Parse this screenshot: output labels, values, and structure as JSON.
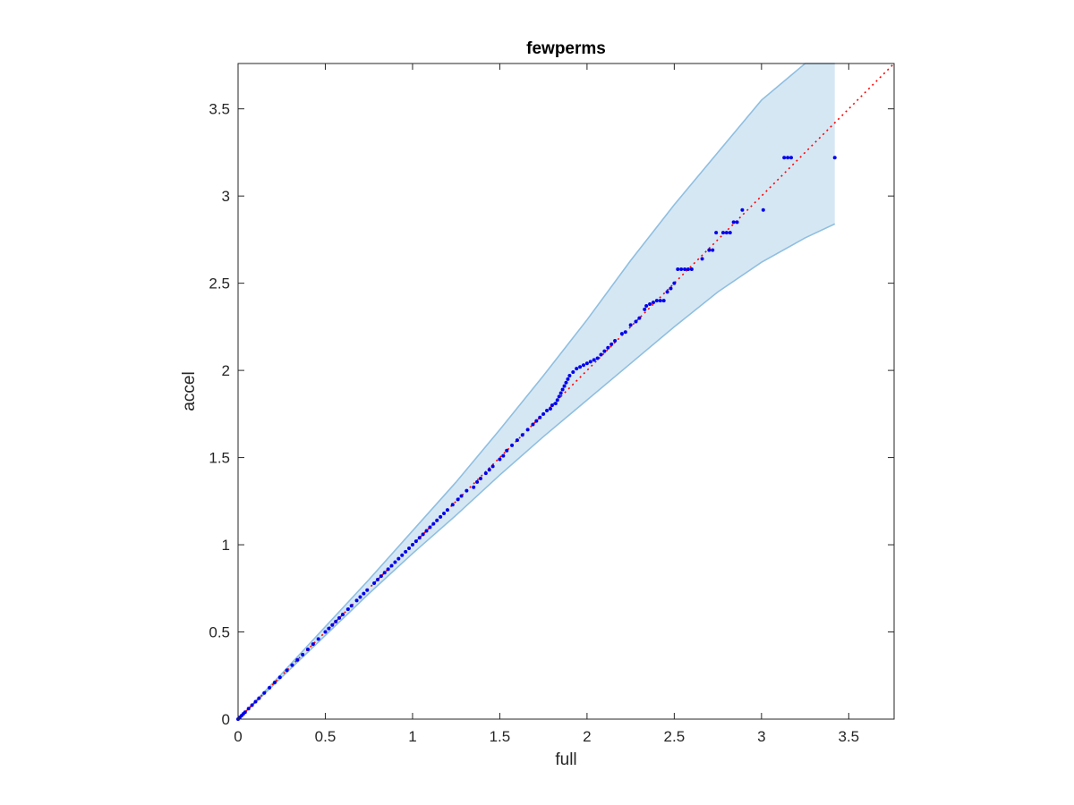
{
  "chart_data": {
    "type": "scatter",
    "title": "fewperms",
    "xlabel": "full",
    "ylabel": "accel",
    "xlim": [
      0,
      3.76
    ],
    "ylim": [
      0,
      3.76
    ],
    "xticks": [
      "0",
      "0.5",
      "1",
      "1.5",
      "2",
      "2.5",
      "3",
      "3.5"
    ],
    "yticks": [
      "0",
      "0.5",
      "1",
      "1.5",
      "2",
      "2.5",
      "3",
      "3.5"
    ],
    "xtick_values": [
      0,
      0.5,
      1,
      1.5,
      2,
      2.5,
      3,
      3.5
    ],
    "ytick_values": [
      0,
      0.5,
      1,
      1.5,
      2,
      2.5,
      3,
      3.5
    ],
    "grid": false,
    "colors": {
      "points": "#0000ee",
      "reference_line": "#ff0000",
      "band_fill": "#d6e7f4",
      "band_edge": "#8fbfe0",
      "axes": "#262626"
    },
    "reference_line": {
      "style": "dotted",
      "x": [
        0,
        3.76
      ],
      "y": [
        0,
        3.76
      ]
    },
    "confidence_band": {
      "x": [
        0,
        0.25,
        0.5,
        0.75,
        1.0,
        1.25,
        1.5,
        1.75,
        2.0,
        2.25,
        2.5,
        2.75,
        3.0,
        3.25,
        3.42
      ],
      "upper": [
        0,
        0.26,
        0.53,
        0.8,
        1.08,
        1.36,
        1.66,
        1.97,
        2.29,
        2.63,
        2.95,
        3.25,
        3.55,
        3.76,
        3.76
      ],
      "lower": [
        0,
        0.24,
        0.48,
        0.72,
        0.95,
        1.17,
        1.4,
        1.62,
        1.83,
        2.04,
        2.25,
        2.45,
        2.62,
        2.76,
        2.84
      ]
    },
    "series": [
      {
        "points": [
          [
            0.0,
            0.0
          ],
          [
            0.01,
            0.01
          ],
          [
            0.02,
            0.02
          ],
          [
            0.03,
            0.03
          ],
          [
            0.04,
            0.04
          ],
          [
            0.06,
            0.06
          ],
          [
            0.08,
            0.08
          ],
          [
            0.1,
            0.1
          ],
          [
            0.12,
            0.12
          ],
          [
            0.15,
            0.15
          ],
          [
            0.18,
            0.18
          ],
          [
            0.21,
            0.21
          ],
          [
            0.24,
            0.24
          ],
          [
            0.28,
            0.28
          ],
          [
            0.31,
            0.31
          ],
          [
            0.34,
            0.34
          ],
          [
            0.37,
            0.37
          ],
          [
            0.4,
            0.4
          ],
          [
            0.43,
            0.43
          ],
          [
            0.46,
            0.46
          ],
          [
            0.5,
            0.5
          ],
          [
            0.52,
            0.52
          ],
          [
            0.54,
            0.54
          ],
          [
            0.56,
            0.56
          ],
          [
            0.58,
            0.58
          ],
          [
            0.6,
            0.6
          ],
          [
            0.63,
            0.63
          ],
          [
            0.65,
            0.65
          ],
          [
            0.68,
            0.68
          ],
          [
            0.7,
            0.7
          ],
          [
            0.72,
            0.72
          ],
          [
            0.74,
            0.74
          ],
          [
            0.78,
            0.78
          ],
          [
            0.8,
            0.8
          ],
          [
            0.82,
            0.82
          ],
          [
            0.84,
            0.84
          ],
          [
            0.86,
            0.86
          ],
          [
            0.88,
            0.88
          ],
          [
            0.9,
            0.9
          ],
          [
            0.92,
            0.92
          ],
          [
            0.94,
            0.94
          ],
          [
            0.96,
            0.96
          ],
          [
            0.98,
            0.98
          ],
          [
            1.0,
            1.0
          ],
          [
            1.02,
            1.02
          ],
          [
            1.04,
            1.04
          ],
          [
            1.06,
            1.06
          ],
          [
            1.08,
            1.08
          ],
          [
            1.1,
            1.1
          ],
          [
            1.12,
            1.12
          ],
          [
            1.14,
            1.14
          ],
          [
            1.16,
            1.16
          ],
          [
            1.18,
            1.18
          ],
          [
            1.2,
            1.2
          ],
          [
            1.23,
            1.23
          ],
          [
            1.26,
            1.26
          ],
          [
            1.28,
            1.28
          ],
          [
            1.31,
            1.31
          ],
          [
            1.35,
            1.33
          ],
          [
            1.37,
            1.36
          ],
          [
            1.39,
            1.38
          ],
          [
            1.42,
            1.41
          ],
          [
            1.44,
            1.43
          ],
          [
            1.46,
            1.45
          ],
          [
            1.5,
            1.49
          ],
          [
            1.52,
            1.51
          ],
          [
            1.54,
            1.54
          ],
          [
            1.57,
            1.57
          ],
          [
            1.6,
            1.6
          ],
          [
            1.63,
            1.63
          ],
          [
            1.66,
            1.66
          ],
          [
            1.69,
            1.69
          ],
          [
            1.71,
            1.71
          ],
          [
            1.73,
            1.73
          ],
          [
            1.75,
            1.75
          ],
          [
            1.77,
            1.77
          ],
          [
            1.79,
            1.78
          ],
          [
            1.8,
            1.8
          ],
          [
            1.82,
            1.81
          ],
          [
            1.83,
            1.83
          ],
          [
            1.84,
            1.85
          ],
          [
            1.85,
            1.87
          ],
          [
            1.86,
            1.89
          ],
          [
            1.87,
            1.91
          ],
          [
            1.88,
            1.93
          ],
          [
            1.89,
            1.95
          ],
          [
            1.9,
            1.97
          ],
          [
            1.92,
            1.99
          ],
          [
            1.94,
            2.01
          ],
          [
            1.96,
            2.02
          ],
          [
            1.98,
            2.03
          ],
          [
            2.0,
            2.04
          ],
          [
            2.02,
            2.05
          ],
          [
            2.04,
            2.06
          ],
          [
            2.06,
            2.07
          ],
          [
            2.08,
            2.09
          ],
          [
            2.1,
            2.11
          ],
          [
            2.12,
            2.13
          ],
          [
            2.14,
            2.15
          ],
          [
            2.16,
            2.17
          ],
          [
            2.2,
            2.21
          ],
          [
            2.22,
            2.22
          ],
          [
            2.25,
            2.26
          ],
          [
            2.28,
            2.28
          ],
          [
            2.3,
            2.3
          ],
          [
            2.33,
            2.35
          ],
          [
            2.34,
            2.37
          ],
          [
            2.36,
            2.38
          ],
          [
            2.38,
            2.39
          ],
          [
            2.4,
            2.4
          ],
          [
            2.42,
            2.4
          ],
          [
            2.44,
            2.4
          ],
          [
            2.46,
            2.45
          ],
          [
            2.48,
            2.47
          ],
          [
            2.5,
            2.5
          ],
          [
            2.52,
            2.58
          ],
          [
            2.54,
            2.58
          ],
          [
            2.56,
            2.58
          ],
          [
            2.58,
            2.58
          ],
          [
            2.6,
            2.58
          ],
          [
            2.66,
            2.64
          ],
          [
            2.7,
            2.69
          ],
          [
            2.72,
            2.69
          ],
          [
            2.74,
            2.79
          ],
          [
            2.78,
            2.79
          ],
          [
            2.8,
            2.79
          ],
          [
            2.82,
            2.79
          ],
          [
            2.84,
            2.85
          ],
          [
            2.86,
            2.85
          ],
          [
            2.89,
            2.92
          ],
          [
            3.01,
            2.92
          ],
          [
            3.13,
            3.22
          ],
          [
            3.15,
            3.22
          ],
          [
            3.17,
            3.22
          ],
          [
            3.42,
            3.22
          ]
        ]
      }
    ]
  }
}
